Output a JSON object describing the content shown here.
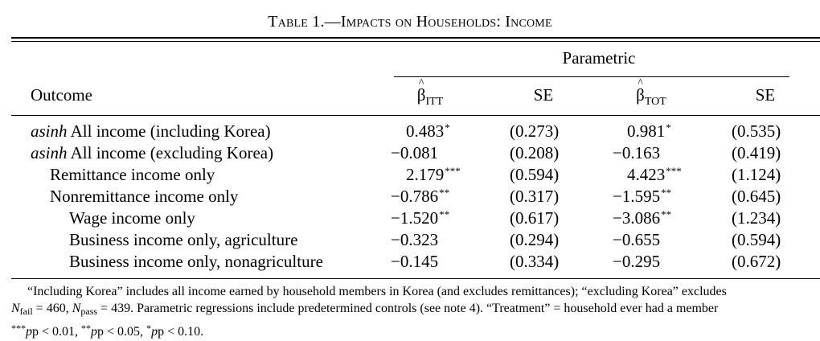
{
  "table": {
    "title": "Table 1.—Impacts on Households: Income",
    "group_header": "Parametric",
    "outcome_header": "Outcome",
    "columns": [
      {
        "symbol": "β",
        "subscript": "ITT"
      },
      {
        "symbol": "SE",
        "subscript": ""
      },
      {
        "symbol": "β",
        "subscript": "TOT"
      },
      {
        "symbol": "SE",
        "subscript": ""
      }
    ],
    "rows": [
      {
        "prefix": "asinh",
        "label": " All income (including Korea)",
        "indent": 0,
        "itt": "0.483",
        "itt_stars": "*",
        "itt_se": "(0.273)",
        "tot": "0.981",
        "tot_stars": "*",
        "tot_se": "(0.535)"
      },
      {
        "prefix": "asinh",
        "label": " All income (excluding Korea)",
        "indent": 0,
        "itt": "−0.081",
        "itt_stars": "",
        "itt_se": "(0.208)",
        "tot": "−0.163",
        "tot_stars": "",
        "tot_se": "(0.419)"
      },
      {
        "prefix": "",
        "label": "Remittance income only",
        "indent": 1,
        "itt": "2.179",
        "itt_stars": "***",
        "itt_se": "(0.594)",
        "tot": "4.423",
        "tot_stars": "***",
        "tot_se": "(1.124)"
      },
      {
        "prefix": "",
        "label": "Nonremittance income only",
        "indent": 1,
        "itt": "−0.786",
        "itt_stars": "**",
        "itt_se": "(0.317)",
        "tot": "−1.595",
        "tot_stars": "**",
        "tot_se": "(0.645)"
      },
      {
        "prefix": "",
        "label": "Wage income only",
        "indent": 2,
        "itt": "−1.520",
        "itt_stars": "**",
        "itt_se": "(0.617)",
        "tot": "−3.086",
        "tot_stars": "**",
        "tot_se": "(1.234)"
      },
      {
        "prefix": "",
        "label": "Business income only, agriculture",
        "indent": 2,
        "itt": "−0.323",
        "itt_stars": "",
        "itt_se": "(0.294)",
        "tot": "−0.655",
        "tot_stars": "",
        "tot_se": "(0.594)"
      },
      {
        "prefix": "",
        "label": "Business income only, nonagriculture",
        "indent": 2,
        "itt": "−0.145",
        "itt_stars": "",
        "itt_se": "(0.334)",
        "tot": "−0.295",
        "tot_stars": "",
        "tot_se": "(0.672)"
      }
    ]
  },
  "notes": {
    "line1": "“Including Korea” includes all income earned by household members in Korea (and excludes remittances); “excluding Korea” excludes",
    "line2_n_fail_label": "N",
    "line2_n_fail_sub": "fail",
    "line2_n_fail_value": " = 460, ",
    "line2_n_pass_label": "N",
    "line2_n_pass_sub": "pass",
    "line2_rest": " = 439. Parametric regressions include predetermined controls (see note 4). “Treatment” = household ever had a member",
    "sig1_stars": "***",
    "sig1_text": "p < 0.01, ",
    "sig2_stars": "**",
    "sig2_text": "p < 0.05, ",
    "sig3_stars": "*",
    "sig3_text": "p < 0.10."
  }
}
